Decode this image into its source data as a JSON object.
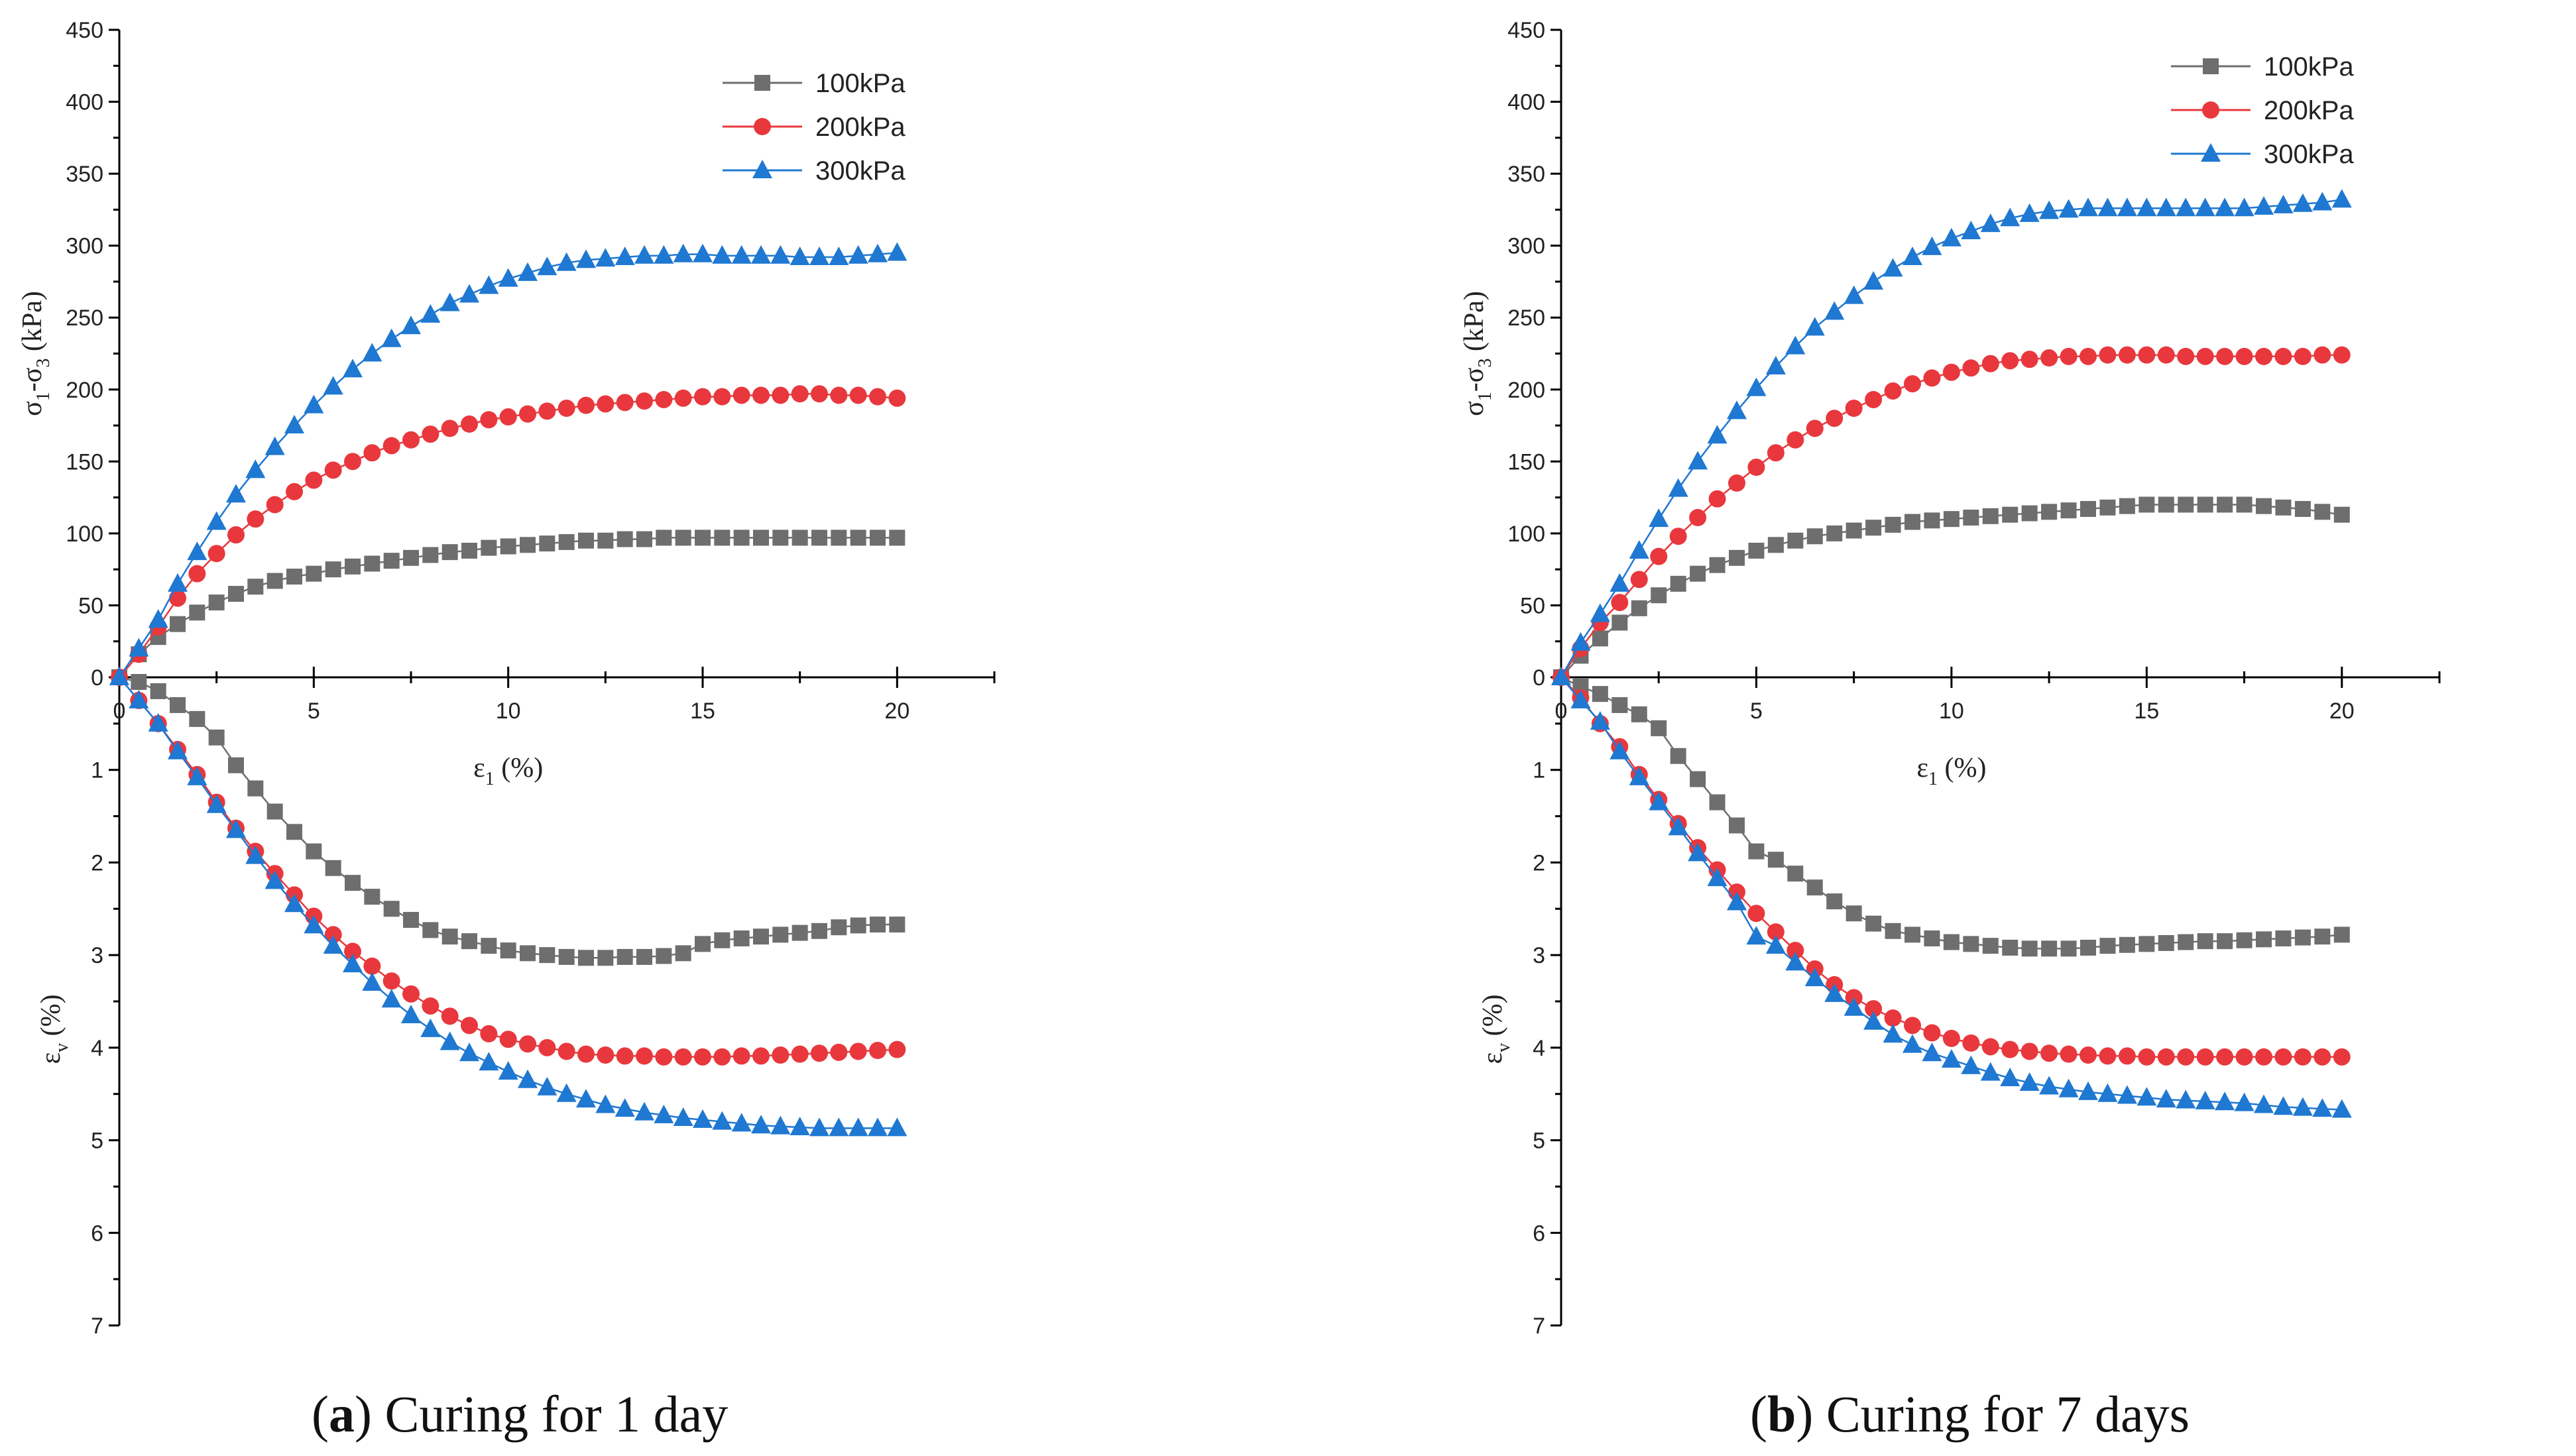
{
  "chart_data": [
    {
      "type": "line",
      "caption_letter": "a",
      "caption_text": ") Curing for 1 day",
      "caption_open": "(",
      "upper": {
        "ylabel": "σ1-σ3 (kPa)",
        "ylabel_parts": [
          "σ",
          "1",
          "-σ",
          "3",
          " (kPa)"
        ],
        "ylim": [
          0,
          450
        ],
        "yticks": [
          "0",
          "50",
          "100",
          "150",
          "200",
          "250",
          "300",
          "350",
          "400",
          "450"
        ],
        "xlabel": "ε1 (%)",
        "xlabel_parts": [
          "ε",
          "1",
          " (%)"
        ],
        "xlim": [
          0,
          22.5
        ],
        "xticks": [
          "0",
          "5",
          "10",
          "15",
          "20"
        ]
      },
      "lower": {
        "ylabel": "εv (%)",
        "ylabel_parts": [
          "ε",
          "v",
          " (%)"
        ],
        "ylim": [
          0,
          7
        ],
        "yticks": [
          "1",
          "2",
          "3",
          "4",
          "5",
          "6",
          "7"
        ]
      },
      "x": [
        0,
        0.5,
        1,
        1.5,
        2,
        2.5,
        3,
        3.5,
        4,
        4.5,
        5,
        5.5,
        6,
        6.5,
        7,
        7.5,
        8,
        8.5,
        9,
        9.5,
        10,
        10.5,
        11,
        11.5,
        12,
        12.5,
        13,
        13.5,
        14,
        14.5,
        15,
        15.5,
        16,
        16.5,
        17,
        17.5,
        18,
        18.5,
        19,
        19.5,
        20
      ],
      "series": [
        {
          "name": "100kPa",
          "color": "#6e6e6e",
          "marker": "square",
          "stress": [
            0,
            16,
            28,
            37,
            45,
            52,
            58,
            63,
            67,
            70,
            72,
            75,
            77,
            79,
            81,
            83,
            85,
            87,
            88,
            90,
            91,
            92,
            93,
            94,
            95,
            95,
            96,
            96,
            97,
            97,
            97,
            97,
            97,
            97,
            97,
            97,
            97,
            97,
            97,
            97,
            97
          ],
          "volumetric": [
            0,
            0.05,
            0.15,
            0.3,
            0.45,
            0.65,
            0.95,
            1.2,
            1.45,
            1.67,
            1.88,
            2.06,
            2.22,
            2.37,
            2.5,
            2.62,
            2.73,
            2.8,
            2.85,
            2.9,
            2.95,
            2.98,
            3.0,
            3.02,
            3.03,
            3.03,
            3.02,
            3.02,
            3.01,
            2.98,
            2.88,
            2.84,
            2.82,
            2.8,
            2.78,
            2.76,
            2.74,
            2.7,
            2.68,
            2.67,
            2.67
          ]
        },
        {
          "name": "200kPa",
          "color": "#e8383d",
          "marker": "circle",
          "stress": [
            0,
            16,
            35,
            55,
            72,
            86,
            99,
            110,
            120,
            129,
            137,
            144,
            150,
            156,
            161,
            165,
            169,
            173,
            176,
            179,
            181,
            183,
            185,
            187,
            189,
            190,
            191,
            192,
            193,
            194,
            195,
            195,
            196,
            196,
            196,
            197,
            197,
            196,
            196,
            195,
            194
          ],
          "volumetric": [
            0,
            0.25,
            0.5,
            0.78,
            1.05,
            1.35,
            1.63,
            1.88,
            2.12,
            2.35,
            2.58,
            2.78,
            2.96,
            3.12,
            3.28,
            3.42,
            3.55,
            3.66,
            3.76,
            3.85,
            3.91,
            3.96,
            4.0,
            4.04,
            4.07,
            4.08,
            4.09,
            4.09,
            4.1,
            4.1,
            4.1,
            4.1,
            4.09,
            4.09,
            4.08,
            4.07,
            4.06,
            4.05,
            4.04,
            4.03,
            4.02
          ]
        },
        {
          "name": "300kPa",
          "color": "#1f78d1",
          "marker": "triangle",
          "stress": [
            0,
            20,
            40,
            65,
            87,
            108,
            127,
            144,
            160,
            175,
            189,
            202,
            214,
            225,
            235,
            244,
            252,
            260,
            266,
            272,
            277,
            281,
            285,
            288,
            290,
            291,
            292,
            293,
            293,
            294,
            294,
            293,
            293,
            293,
            293,
            292,
            292,
            292,
            293,
            294,
            295
          ],
          "volumetric": [
            0,
            0.25,
            0.5,
            0.8,
            1.08,
            1.38,
            1.65,
            1.93,
            2.2,
            2.45,
            2.68,
            2.9,
            3.1,
            3.3,
            3.48,
            3.65,
            3.8,
            3.94,
            4.06,
            4.16,
            4.26,
            4.35,
            4.43,
            4.5,
            4.56,
            4.62,
            4.66,
            4.7,
            4.73,
            4.76,
            4.78,
            4.8,
            4.82,
            4.84,
            4.85,
            4.86,
            4.87,
            4.87,
            4.87,
            4.87,
            4.87
          ]
        }
      ]
    },
    {
      "type": "line",
      "caption_letter": "b",
      "caption_text": ") Curing for 7 days",
      "caption_open": "(",
      "upper": {
        "ylabel": "σ1-σ3 (kPa)",
        "ylabel_parts": [
          "σ",
          "1",
          "-σ",
          "3",
          " (kPa)"
        ],
        "ylim": [
          0,
          450
        ],
        "yticks": [
          "0",
          "50",
          "100",
          "150",
          "200",
          "250",
          "300",
          "350",
          "400",
          "450"
        ],
        "xlabel": "ε1 (%)",
        "xlabel_parts": [
          "ε",
          "1",
          " (%)"
        ],
        "xlim": [
          0,
          22.5
        ],
        "xticks": [
          "0",
          "5",
          "10",
          "15",
          "20"
        ]
      },
      "lower": {
        "ylabel": "εv (%)",
        "ylabel_parts": [
          "ε",
          "v",
          " (%)"
        ],
        "ylim": [
          0,
          7
        ],
        "yticks": [
          "1",
          "2",
          "3",
          "4",
          "5",
          "6",
          "7"
        ]
      },
      "x": [
        0,
        0.5,
        1,
        1.5,
        2,
        2.5,
        3,
        3.5,
        4,
        4.5,
        5,
        5.5,
        6,
        6.5,
        7,
        7.5,
        8,
        8.5,
        9,
        9.5,
        10,
        10.5,
        11,
        11.5,
        12,
        12.5,
        13,
        13.5,
        14,
        14.5,
        15,
        15.5,
        16,
        16.5,
        17,
        17.5,
        18,
        18.5,
        19,
        19.5,
        20
      ],
      "series": [
        {
          "name": "100kPa",
          "color": "#6e6e6e",
          "marker": "square",
          "stress": [
            0,
            15,
            27,
            38,
            48,
            57,
            65,
            72,
            78,
            83,
            88,
            92,
            95,
            98,
            100,
            102,
            104,
            106,
            108,
            109,
            110,
            111,
            112,
            113,
            114,
            115,
            116,
            117,
            118,
            119,
            120,
            120,
            120,
            120,
            120,
            120,
            119,
            118,
            117,
            115,
            113
          ],
          "volumetric": [
            0,
            0.1,
            0.18,
            0.3,
            0.4,
            0.55,
            0.85,
            1.1,
            1.35,
            1.6,
            1.88,
            1.97,
            2.12,
            2.27,
            2.42,
            2.55,
            2.66,
            2.74,
            2.78,
            2.82,
            2.86,
            2.88,
            2.9,
            2.92,
            2.93,
            2.93,
            2.93,
            2.92,
            2.9,
            2.89,
            2.88,
            2.87,
            2.86,
            2.85,
            2.85,
            2.84,
            2.83,
            2.82,
            2.81,
            2.8,
            2.78
          ]
        },
        {
          "name": "200kPa",
          "color": "#e8383d",
          "marker": "circle",
          "stress": [
            0,
            20,
            38,
            52,
            68,
            84,
            98,
            111,
            124,
            135,
            146,
            156,
            165,
            173,
            180,
            187,
            193,
            199,
            204,
            208,
            212,
            215,
            218,
            220,
            221,
            222,
            223,
            223,
            224,
            224,
            224,
            224,
            223,
            223,
            223,
            223,
            223,
            223,
            223,
            224,
            224
          ],
          "volumetric": [
            0,
            0.22,
            0.5,
            0.75,
            1.05,
            1.32,
            1.58,
            1.84,
            2.08,
            2.32,
            2.55,
            2.75,
            2.95,
            3.15,
            3.32,
            3.46,
            3.58,
            3.68,
            3.76,
            3.84,
            3.9,
            3.95,
            3.99,
            4.02,
            4.04,
            4.06,
            4.07,
            4.08,
            4.09,
            4.09,
            4.1,
            4.1,
            4.1,
            4.1,
            4.1,
            4.1,
            4.1,
            4.1,
            4.1,
            4.1,
            4.1
          ]
        },
        {
          "name": "300kPa",
          "color": "#1f78d1",
          "marker": "triangle",
          "stress": [
            0,
            24,
            44,
            65,
            88,
            110,
            131,
            150,
            168,
            185,
            201,
            216,
            230,
            243,
            254,
            265,
            275,
            284,
            292,
            299,
            305,
            310,
            315,
            319,
            322,
            324,
            325,
            326,
            326,
            326,
            326,
            326,
            326,
            326,
            326,
            326,
            327,
            328,
            329,
            330,
            332
          ],
          "volumetric": [
            0,
            0.25,
            0.48,
            0.8,
            1.08,
            1.35,
            1.62,
            1.9,
            2.17,
            2.43,
            2.8,
            2.9,
            3.08,
            3.25,
            3.42,
            3.57,
            3.72,
            3.86,
            3.97,
            4.06,
            4.13,
            4.2,
            4.27,
            4.33,
            4.38,
            4.42,
            4.45,
            4.48,
            4.5,
            4.52,
            4.54,
            4.56,
            4.57,
            4.58,
            4.59,
            4.6,
            4.62,
            4.64,
            4.65,
            4.66,
            4.67
          ]
        }
      ]
    }
  ]
}
